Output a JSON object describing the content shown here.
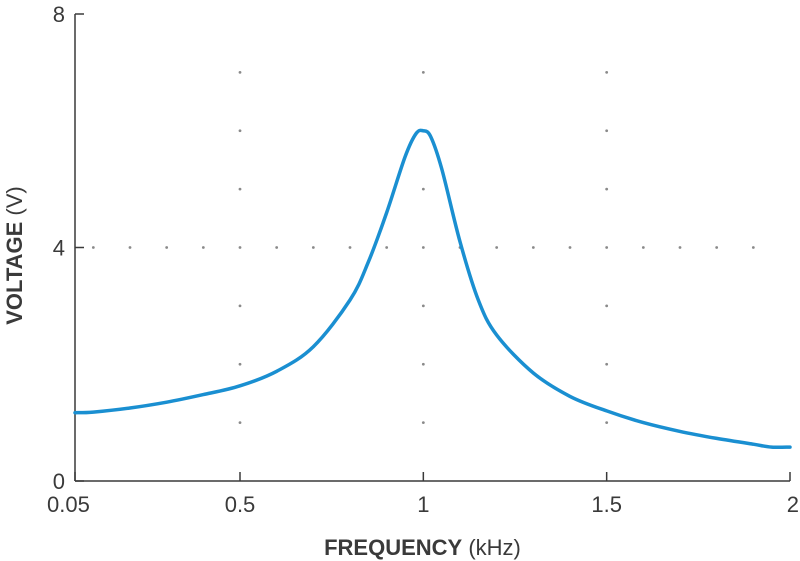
{
  "chart_data": {
    "type": "line",
    "xlabel_bold": "FREQUENCY",
    "xlabel_unit": " (kHz)",
    "ylabel_bold": "VOLTAGE",
    "ylabel_unit": " (V)",
    "xlim": [
      0.05,
      2
    ],
    "ylim": [
      0,
      8
    ],
    "x_ticks": [
      {
        "value": 0.05,
        "label": "0.05"
      },
      {
        "value": 0.5,
        "label": "0.5"
      },
      {
        "value": 1,
        "label": "1"
      },
      {
        "value": 1.5,
        "label": "1.5"
      },
      {
        "value": 2,
        "label": "2"
      }
    ],
    "y_ticks": [
      {
        "value": 0,
        "label": "0"
      },
      {
        "value": 4,
        "label": "4"
      },
      {
        "value": 8,
        "label": "8"
      }
    ],
    "grid": "dotted",
    "line_color": "#1a8fd1",
    "series": [
      {
        "x": [
          0.05,
          0.1,
          0.2,
          0.3,
          0.4,
          0.5,
          0.6,
          0.7,
          0.8,
          0.85,
          0.9,
          0.95,
          0.98,
          1.0,
          1.02,
          1.05,
          1.1,
          1.15,
          1.2,
          1.3,
          1.4,
          1.5,
          1.6,
          1.7,
          1.8,
          1.9,
          1.95,
          2.0
        ],
        "y": [
          1.17,
          1.18,
          1.25,
          1.35,
          1.48,
          1.63,
          1.88,
          2.3,
          3.1,
          3.75,
          4.6,
          5.55,
          5.95,
          6.0,
          5.9,
          5.35,
          4.1,
          3.1,
          2.5,
          1.85,
          1.45,
          1.2,
          1.0,
          0.85,
          0.73,
          0.63,
          0.58,
          0.58
        ]
      }
    ]
  }
}
